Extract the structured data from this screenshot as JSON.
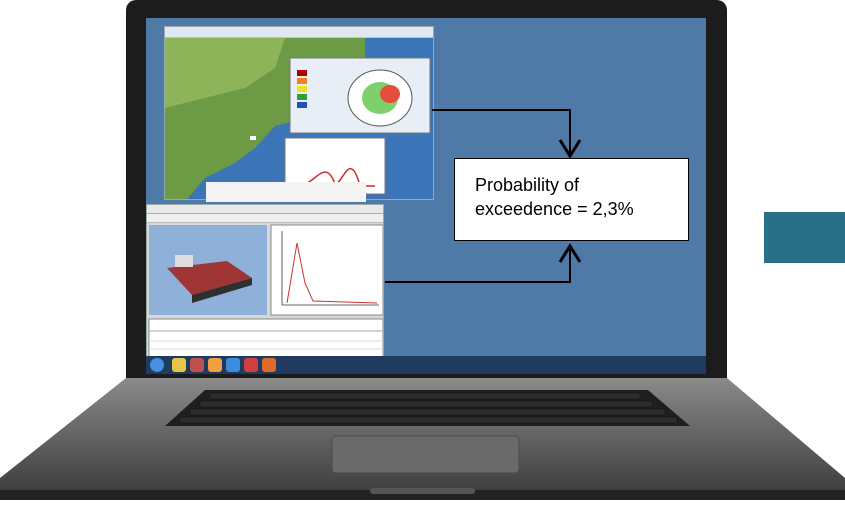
{
  "callout": {
    "line1": "Probability of",
    "line2": "exceedence = 2,3%"
  },
  "colors": {
    "screen": "#4f79a6",
    "side_rect": "#2a6f88",
    "laptop_body": "#1c1c1c"
  }
}
